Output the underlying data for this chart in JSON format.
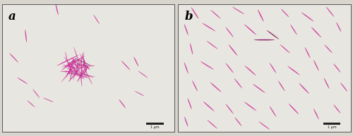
{
  "fig_width": 5.0,
  "fig_height": 1.93,
  "dpi": 100,
  "bg_color": "#d8d4ce",
  "panel_bg": "#e8e6e0",
  "border_color": "#555555",
  "label_a": "a",
  "label_b": "b",
  "label_fontsize": 12,
  "label_fontweight": "bold",
  "bacteria_color": "#cc3399",
  "bacteria_color_alt": "#e040a0",
  "bacteria_color_dark": "#882266",
  "panel_a_sparse": [
    [
      0.32,
      0.96,
      -80,
      0.09,
      0.006
    ],
    [
      0.14,
      0.75,
      -85,
      0.1,
      0.006
    ],
    [
      0.07,
      0.58,
      -55,
      0.09,
      0.006
    ],
    [
      0.12,
      0.4,
      -40,
      0.08,
      0.006
    ],
    [
      0.2,
      0.3,
      -60,
      0.08,
      0.005
    ],
    [
      0.27,
      0.25,
      -30,
      0.07,
      0.005
    ],
    [
      0.17,
      0.22,
      -50,
      0.07,
      0.005
    ],
    [
      0.72,
      0.52,
      -55,
      0.09,
      0.006
    ],
    [
      0.78,
      0.55,
      -70,
      0.08,
      0.006
    ],
    [
      0.82,
      0.45,
      -45,
      0.08,
      0.005
    ],
    [
      0.8,
      0.3,
      -35,
      0.07,
      0.005
    ],
    [
      0.7,
      0.22,
      -60,
      0.08,
      0.006
    ],
    [
      0.55,
      0.88,
      -65,
      0.08,
      0.005
    ]
  ],
  "panel_b_bacteria": [
    [
      0.1,
      0.93,
      -65,
      0.1,
      0.007
    ],
    [
      0.22,
      0.92,
      -50,
      0.09,
      0.006
    ],
    [
      0.35,
      0.95,
      -40,
      0.09,
      0.006
    ],
    [
      0.48,
      0.91,
      -70,
      0.1,
      0.007
    ],
    [
      0.62,
      0.93,
      -55,
      0.08,
      0.006
    ],
    [
      0.75,
      0.9,
      -45,
      0.1,
      0.007
    ],
    [
      0.88,
      0.94,
      -60,
      0.09,
      0.006
    ],
    [
      0.05,
      0.8,
      -75,
      0.09,
      0.006
    ],
    [
      0.18,
      0.82,
      -40,
      0.1,
      0.007
    ],
    [
      0.3,
      0.78,
      -60,
      0.09,
      0.006
    ],
    [
      0.42,
      0.8,
      -50,
      0.11,
      0.007
    ],
    [
      0.55,
      0.76,
      -45,
      0.1,
      0.007
    ],
    [
      0.67,
      0.8,
      -65,
      0.09,
      0.006
    ],
    [
      0.8,
      0.78,
      -55,
      0.1,
      0.007
    ],
    [
      0.93,
      0.82,
      -70,
      0.08,
      0.006
    ],
    [
      0.5,
      0.72,
      0,
      0.12,
      0.009
    ],
    [
      0.08,
      0.65,
      -80,
      0.09,
      0.006
    ],
    [
      0.2,
      0.68,
      -45,
      0.09,
      0.006
    ],
    [
      0.32,
      0.64,
      -60,
      0.1,
      0.007
    ],
    [
      0.62,
      0.65,
      -50,
      0.09,
      0.006
    ],
    [
      0.75,
      0.62,
      -70,
      0.09,
      0.006
    ],
    [
      0.87,
      0.65,
      -55,
      0.08,
      0.006
    ],
    [
      0.05,
      0.5,
      -75,
      0.09,
      0.006
    ],
    [
      0.17,
      0.52,
      -40,
      0.1,
      0.007
    ],
    [
      0.3,
      0.5,
      -60,
      0.09,
      0.006
    ],
    [
      0.42,
      0.48,
      -50,
      0.1,
      0.007
    ],
    [
      0.55,
      0.5,
      -65,
      0.09,
      0.006
    ],
    [
      0.67,
      0.48,
      -45,
      0.1,
      0.007
    ],
    [
      0.8,
      0.52,
      -70,
      0.09,
      0.006
    ],
    [
      0.92,
      0.5,
      -60,
      0.08,
      0.006
    ],
    [
      0.1,
      0.36,
      -70,
      0.09,
      0.006
    ],
    [
      0.22,
      0.35,
      -50,
      0.1,
      0.007
    ],
    [
      0.35,
      0.38,
      -60,
      0.09,
      0.006
    ],
    [
      0.47,
      0.34,
      -45,
      0.1,
      0.007
    ],
    [
      0.6,
      0.36,
      -65,
      0.09,
      0.006
    ],
    [
      0.73,
      0.34,
      -55,
      0.1,
      0.007
    ],
    [
      0.86,
      0.38,
      -70,
      0.09,
      0.006
    ],
    [
      0.96,
      0.35,
      -60,
      0.08,
      0.006
    ],
    [
      0.07,
      0.22,
      -75,
      0.09,
      0.006
    ],
    [
      0.18,
      0.2,
      -50,
      0.1,
      0.007
    ],
    [
      0.3,
      0.18,
      -60,
      0.09,
      0.006
    ],
    [
      0.42,
      0.2,
      -45,
      0.1,
      0.007
    ],
    [
      0.55,
      0.16,
      -65,
      0.09,
      0.006
    ],
    [
      0.67,
      0.18,
      -55,
      0.1,
      0.007
    ],
    [
      0.8,
      0.14,
      -70,
      0.09,
      0.006
    ],
    [
      0.92,
      0.18,
      -60,
      0.08,
      0.006
    ],
    [
      0.05,
      0.08,
      -75,
      0.08,
      0.006
    ],
    [
      0.2,
      0.06,
      -50,
      0.09,
      0.006
    ],
    [
      0.35,
      0.08,
      -60,
      0.08,
      0.006
    ],
    [
      0.5,
      0.05,
      -45,
      0.09,
      0.006
    ]
  ]
}
